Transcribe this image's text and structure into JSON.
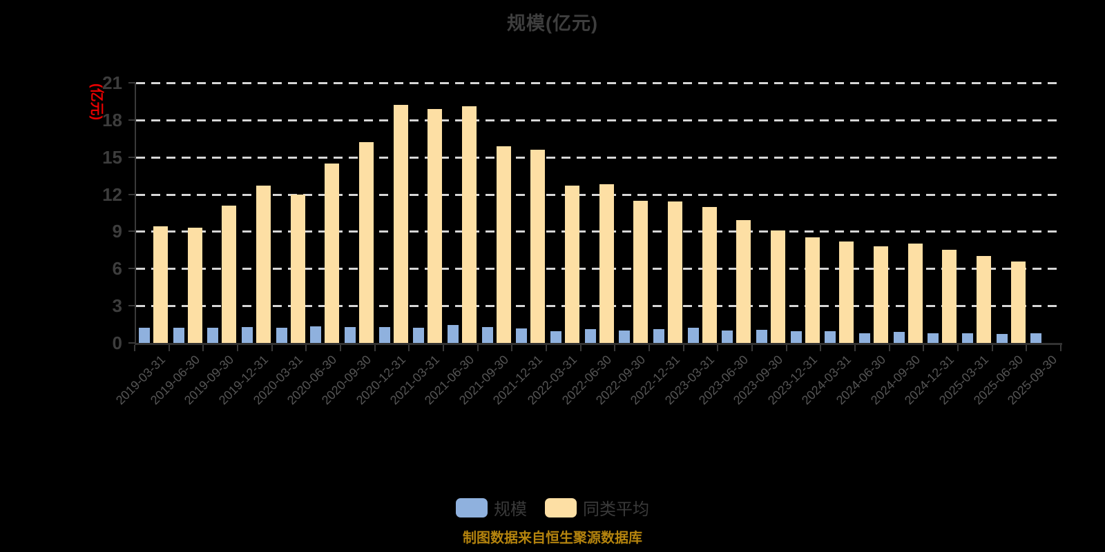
{
  "title": "规模(亿元)",
  "y_axis_name": "(亿元)",
  "caption": "制图数据来自恒生聚源数据库",
  "colors": {
    "background": "#000000",
    "title_text": "#3e3e3e",
    "y_axis_name_text": "#e60000",
    "axis_line": "#3a3a3a",
    "gridline": "#d6d6d6",
    "y_tick_text": "#3d3d3d",
    "x_tick_text": "#555555",
    "scale_bar": "#8fb1de",
    "average_bar": "#fddfa4",
    "legend_text": "#3a3a3a",
    "caption_text": "#b5840e"
  },
  "chart_data": {
    "type": "bar",
    "title": "规模(亿元)",
    "xlabel": "",
    "ylabel": "(亿元)",
    "ylim": [
      0,
      21
    ],
    "ytick_step": 3,
    "yticks": [
      0,
      3,
      6,
      9,
      12,
      15,
      18,
      21
    ],
    "grid": "horizontal dashed",
    "legend_position": "bottom",
    "categories": [
      "2019-03-31",
      "2019-06-30",
      "2019-09-30",
      "2019-12-31",
      "2020-03-31",
      "2020-06-30",
      "2020-09-30",
      "2020-12-31",
      "2021-03-31",
      "2021-06-30",
      "2021-09-30",
      "2021-12-31",
      "2022-03-31",
      "2022-06-30",
      "2022-09-30",
      "2022-12-31",
      "2023-03-31",
      "2023-06-30",
      "2023-09-30",
      "2023-12-31",
      "2024-03-31",
      "2024-06-30",
      "2024-09-30",
      "2024-12-31",
      "2025-03-31",
      "2025-06-30",
      "2025-09-30"
    ],
    "series": [
      {
        "name": "规模",
        "color": "#8fb1de",
        "values": [
          1.2,
          1.2,
          1.2,
          1.3,
          1.2,
          1.35,
          1.3,
          1.3,
          1.2,
          1.45,
          1.3,
          1.15,
          0.95,
          1.1,
          1.0,
          1.1,
          1.25,
          1.0,
          1.05,
          0.95,
          0.95,
          0.8,
          0.9,
          0.8,
          0.8,
          0.75,
          0.8
        ]
      },
      {
        "name": "同类平均",
        "color": "#fddfa4",
        "values": [
          9.4,
          9.3,
          11.1,
          12.7,
          12.0,
          14.5,
          16.2,
          19.2,
          18.9,
          19.1,
          15.9,
          15.6,
          12.7,
          12.8,
          11.5,
          11.4,
          11.0,
          9.9,
          9.1,
          8.5,
          8.2,
          7.8,
          8.0,
          7.5,
          7.0,
          6.6,
          null
        ]
      }
    ]
  }
}
